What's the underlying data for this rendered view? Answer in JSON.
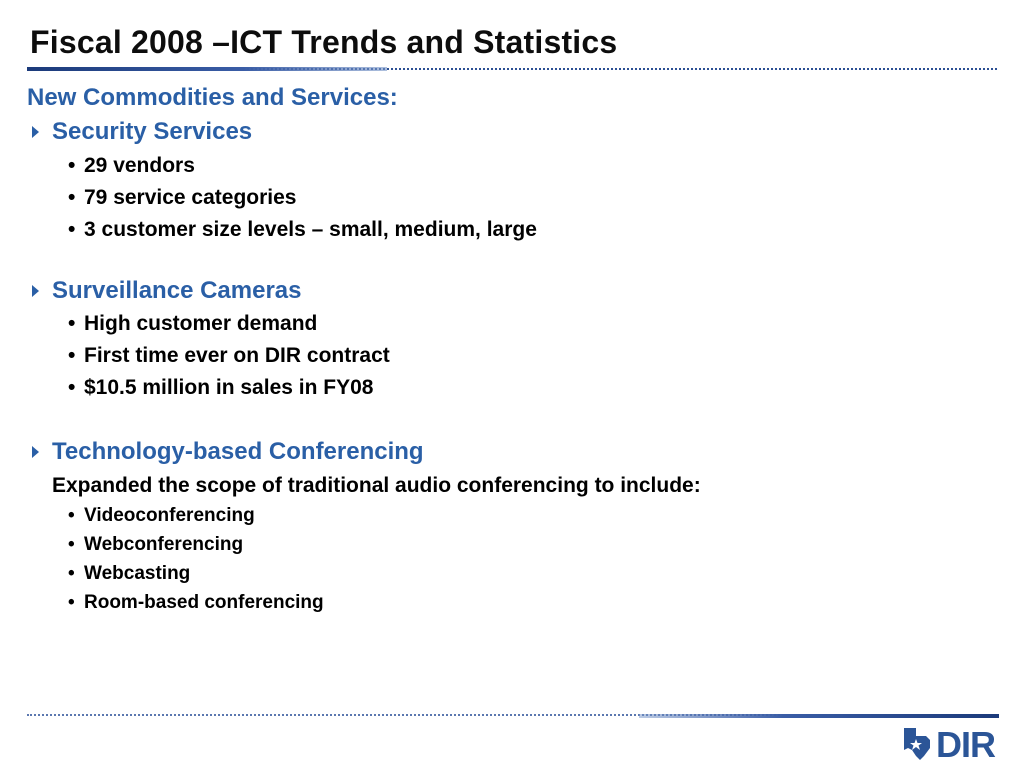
{
  "slide": {
    "title": "Fiscal 2008 –ICT Trends and Statistics",
    "heading": "New Commodities and Services:",
    "sections": [
      {
        "label": "Security Services",
        "items": [
          "29 vendors",
          "79 service categories",
          "3 customer size levels – small, medium, large"
        ]
      },
      {
        "label": "Surveillance Cameras",
        "items": [
          "High customer demand",
          "First time ever on DIR contract",
          "$10.5 million in sales in FY08"
        ]
      },
      {
        "label": "Technology-based Conferencing",
        "subline": "Expanded the scope of traditional audio conferencing to include:",
        "items": [
          "Videoconferencing",
          "Webconferencing",
          "Webcasting",
          "Room-based conferencing"
        ]
      }
    ],
    "logo_text": "DIR",
    "colors": {
      "accent": "#2a5fa6",
      "rule": "#1b3a7a",
      "logo": "#2b5597"
    },
    "bullet_char": "•",
    "icons": {
      "section_marker": "triangle-right-icon",
      "logo": "texas-star-icon"
    }
  }
}
